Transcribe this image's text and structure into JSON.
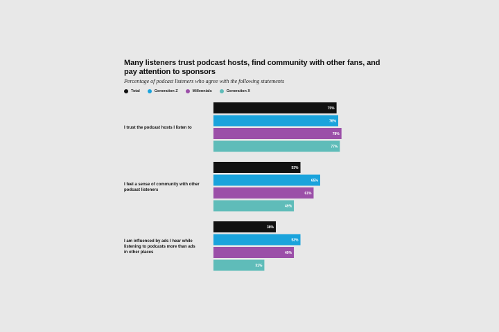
{
  "chart_data": {
    "type": "bar",
    "orientation": "horizontal",
    "title": "Many listeners trust podcast hosts, find community with other fans, and pay attention to sponsors",
    "subtitle": "Percentage of podcast listeners who agree with the following statements",
    "categories": [
      [
        "I trust the podcast hosts I listen to"
      ],
      [
        "I feel a sense of community with other",
        "podcast listeners"
      ],
      [
        "I am influenced by ads I hear while",
        "listening to podcasts more than ads",
        "in other places"
      ]
    ],
    "series": [
      {
        "name": "Total",
        "color": "#111111",
        "values": [
          75,
          53,
          38
        ],
        "labels": [
          "75%",
          "53%",
          "38%"
        ]
      },
      {
        "name": "Generation Z",
        "color": "#1aa3dc",
        "values": [
          76,
          65,
          53
        ],
        "labels": [
          "76%",
          "65%",
          "53%"
        ]
      },
      {
        "name": "Millennials",
        "color": "#9b4fa8",
        "values": [
          78,
          61,
          49
        ],
        "labels": [
          "78%",
          "61%",
          "49%"
        ]
      },
      {
        "name": "Generation X",
        "color": "#5fbcb9",
        "values": [
          77,
          49,
          31
        ],
        "labels": [
          "77%",
          "49%",
          "31%"
        ]
      }
    ],
    "xlim": [
      0,
      100
    ],
    "legend_position": "top-left",
    "grid": false
  }
}
